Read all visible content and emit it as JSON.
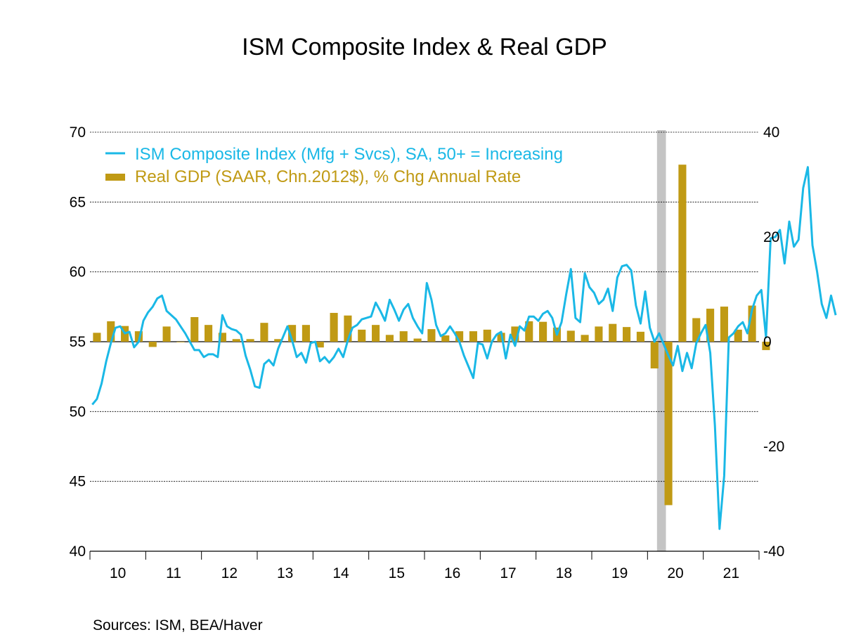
{
  "chart_data": {
    "type": "line+bar",
    "title": "ISM Composite Index & Real GDP",
    "source": "Sources:  ISM, BEA/Haver",
    "x_tick_labels": [
      "10",
      "11",
      "12",
      "13",
      "14",
      "15",
      "16",
      "17",
      "18",
      "19",
      "20",
      "21"
    ],
    "x_range": [
      2010.0,
      2022.0
    ],
    "left_axis": {
      "range": [
        40,
        70
      ],
      "ticks": [
        "40",
        "45",
        "50",
        "55",
        "60",
        "65",
        "70"
      ]
    },
    "right_axis": {
      "range": [
        -40,
        40
      ],
      "ticks": [
        "-40",
        "-20",
        "0",
        "20",
        "40"
      ]
    },
    "recession_shading": [
      2020.17,
      2020.33
    ],
    "colors": {
      "ism": "#1ab8e6",
      "gdp": "#c09a14",
      "recession": "#c4c4c4"
    },
    "series": [
      {
        "name": "ISM Composite Index (Mfg + Svcs), SA, 50+ = Increasing",
        "axis": "left",
        "type": "line",
        "start": 2010.0,
        "step_months": 1,
        "values": [
          50.5,
          50.9,
          52.0,
          53.6,
          54.9,
          56.0,
          56.1,
          55.6,
          55.7,
          54.6,
          55.0,
          56.5,
          57.1,
          57.5,
          58.1,
          58.3,
          57.2,
          56.9,
          56.6,
          56.1,
          55.6,
          55.0,
          54.4,
          54.4,
          53.9,
          54.1,
          54.1,
          53.9,
          56.9,
          56.1,
          55.9,
          55.8,
          55.5,
          54.0,
          53.0,
          51.8,
          51.7,
          53.4,
          53.7,
          53.3,
          54.5,
          55.3,
          56.1,
          55.1,
          53.9,
          54.2,
          53.5,
          54.9,
          55.0,
          53.6,
          53.9,
          53.5,
          53.9,
          54.5,
          53.9,
          55.1,
          56.0,
          56.2,
          56.6,
          56.7,
          56.8,
          57.8,
          57.2,
          56.5,
          58.0,
          57.3,
          56.5,
          57.3,
          57.7,
          56.7,
          56.1,
          55.6,
          59.2,
          58.0,
          56.2,
          55.4,
          55.6,
          56.1,
          55.6,
          55.0,
          54.0,
          53.2,
          52.4,
          54.9,
          54.8,
          53.8,
          55.0,
          55.5,
          55.7,
          53.8,
          55.5,
          54.7,
          56.1,
          55.8,
          56.8,
          56.8,
          56.5,
          57.0,
          57.2,
          56.7,
          55.5,
          56.4,
          58.4,
          60.2,
          56.7,
          56.4,
          59.9,
          58.9,
          58.5,
          57.7,
          58.0,
          58.8,
          57.2,
          59.6,
          60.4,
          60.5,
          60.1,
          57.6,
          56.3,
          58.6,
          56.0,
          55.0,
          55.6,
          54.8,
          54.0,
          53.3,
          54.7,
          52.9,
          54.2,
          53.1,
          54.9,
          55.6,
          56.2,
          54.2,
          49.0,
          41.6,
          45.4,
          55.3,
          55.6,
          56.1,
          56.4,
          55.6,
          57.3,
          58.3,
          58.7,
          55.3,
          62.4,
          62.5,
          63.0,
          60.6,
          63.6,
          61.8,
          62.3,
          66.0,
          67.5,
          61.9,
          60.0,
          57.7,
          56.7,
          58.3,
          56.9
        ]
      },
      {
        "name": "Real GDP (SAAR, Chn.2012$), % Chg Annual Rate",
        "axis": "right",
        "type": "bar",
        "start": 2010.0,
        "step_quarters": 1,
        "values": [
          1.7,
          3.9,
          3.0,
          2.0,
          -1.0,
          2.9,
          -0.1,
          4.7,
          3.2,
          1.7,
          0.5,
          0.5,
          3.6,
          0.5,
          3.2,
          3.2,
          -1.1,
          5.5,
          5.0,
          2.3,
          3.2,
          1.3,
          2.0,
          0.6,
          2.4,
          1.2,
          2.0,
          2.0,
          2.3,
          1.7,
          2.9,
          3.9,
          3.8,
          2.7,
          2.1,
          1.3,
          2.9,
          3.4,
          2.8,
          1.9,
          -5.1,
          -31.2,
          33.8,
          4.5,
          6.3,
          6.7,
          2.3,
          6.9,
          -1.6
        ]
      }
    ]
  }
}
